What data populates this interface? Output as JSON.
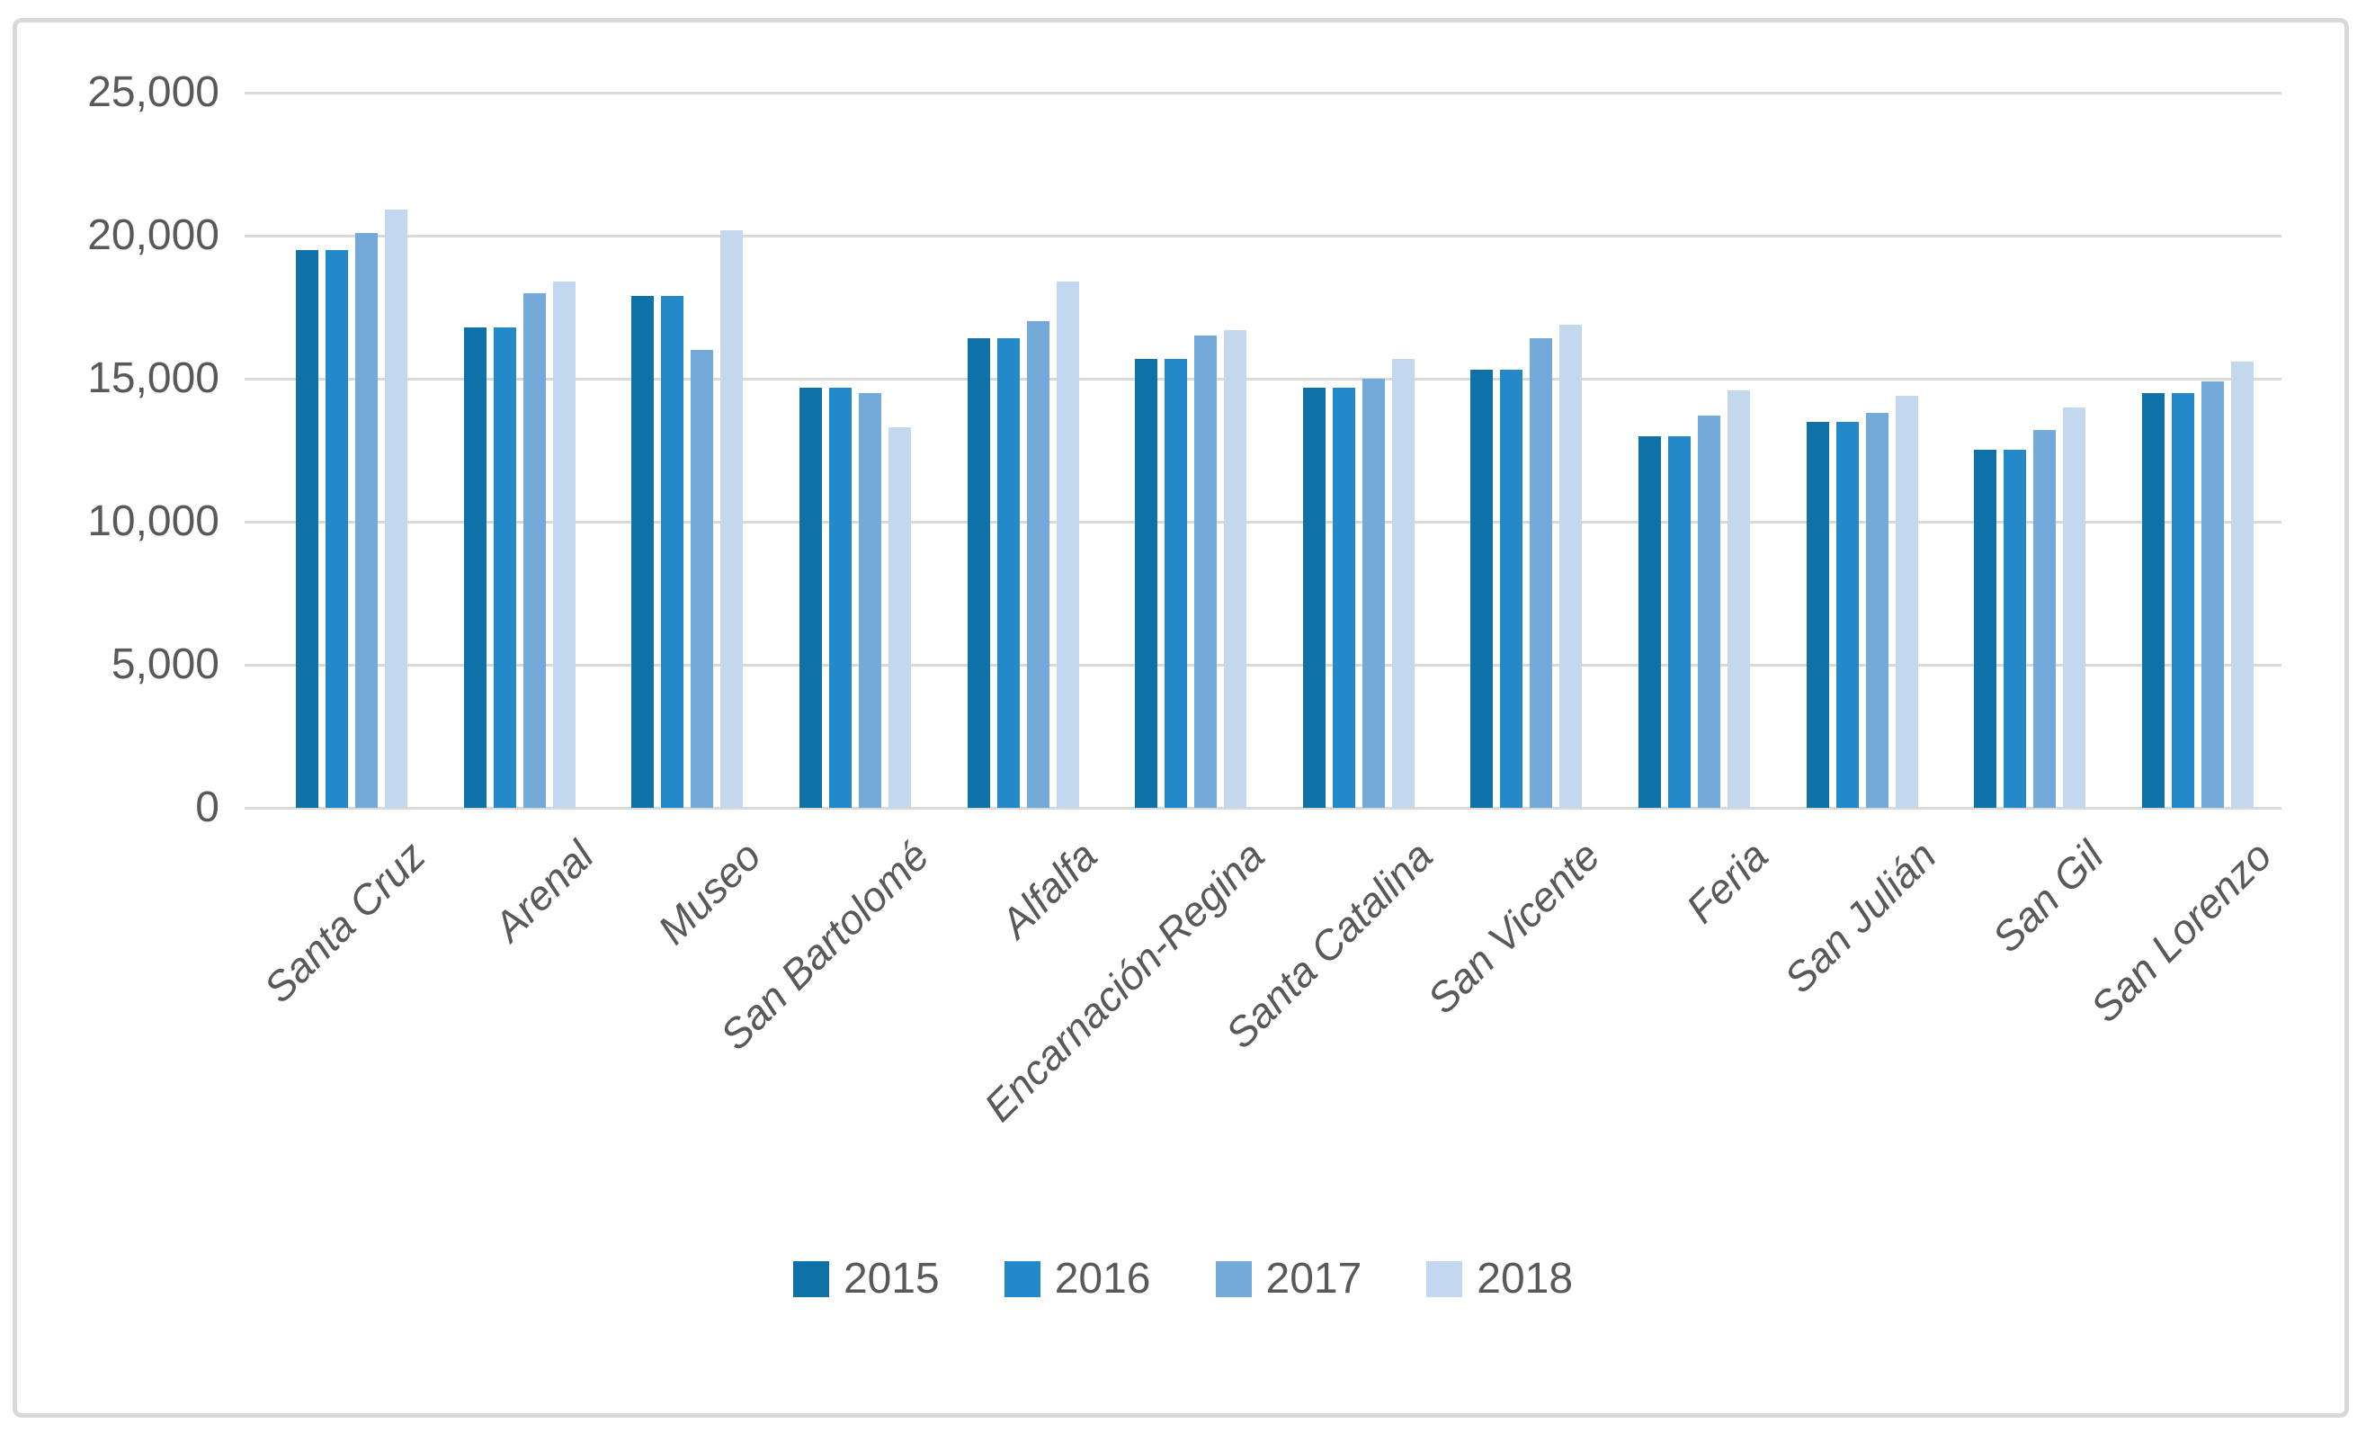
{
  "chart_data": {
    "type": "bar",
    "title": "",
    "xlabel": "",
    "ylabel": "",
    "categories": [
      "Santa Cruz",
      "Arenal",
      "Museo",
      "San Bartolomé",
      "Alfalfa",
      "Encarnación-Regina",
      "Santa Catalina",
      "San Vicente",
      "Feria",
      "San Julián",
      "San Gil",
      "San Lorenzo"
    ],
    "series": [
      {
        "name": "2015",
        "color": "#0e72a8",
        "values": [
          19500,
          16800,
          17900,
          14700,
          16400,
          15700,
          14700,
          15300,
          13000,
          13500,
          12500,
          14500
        ]
      },
      {
        "name": "2016",
        "color": "#2389c9",
        "values": [
          19500,
          16800,
          17900,
          14700,
          16400,
          15700,
          14700,
          15300,
          13000,
          13500,
          12500,
          14500
        ]
      },
      {
        "name": "2017",
        "color": "#74aad9",
        "values": [
          20100,
          18000,
          16000,
          14500,
          17000,
          16500,
          15000,
          16400,
          13700,
          13800,
          13200,
          14900
        ]
      },
      {
        "name": "2018",
        "color": "#c3d7ee",
        "values": [
          20900,
          18400,
          20200,
          13300,
          18400,
          16700,
          15700,
          16900,
          14600,
          14400,
          14000,
          15600
        ]
      }
    ],
    "y_axis": {
      "min": 0,
      "max": 25000,
      "tick_step": 5000,
      "ticks": [
        {
          "value": 0,
          "label": "0"
        },
        {
          "value": 5000,
          "label": "5,000"
        },
        {
          "value": 10000,
          "label": "10,000"
        },
        {
          "value": 15000,
          "label": "15,000"
        },
        {
          "value": 20000,
          "label": "20,000"
        },
        {
          "value": 25000,
          "label": "25,000"
        }
      ]
    },
    "legend": {
      "position": "bottom",
      "entries": [
        "2015",
        "2016",
        "2017",
        "2018"
      ]
    },
    "grid": true,
    "styles": {
      "gridline_color": "#d9d9d9",
      "axis_text_color": "#595959",
      "border_color": "#d9d9d9",
      "background": "#ffffff"
    }
  }
}
